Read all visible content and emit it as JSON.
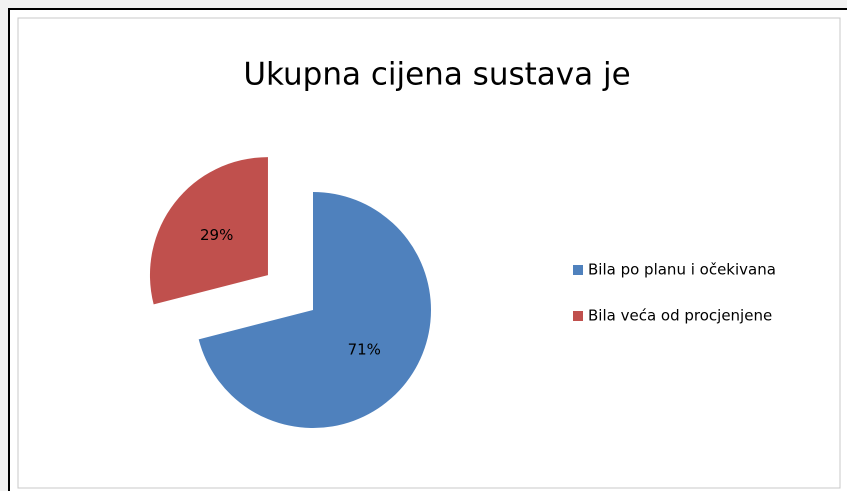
{
  "chart_data": {
    "type": "pie",
    "title": "Ukupna cijena sustava je",
    "categories": [
      "Bila po planu i očekivana",
      "Bila veća od procjenjene"
    ],
    "values": [
      71,
      29
    ],
    "value_labels": [
      "71%",
      "29%"
    ],
    "colors": [
      "#4f81bd",
      "#c0504d"
    ],
    "exploded": [
      false,
      true
    ],
    "legend": "right"
  }
}
